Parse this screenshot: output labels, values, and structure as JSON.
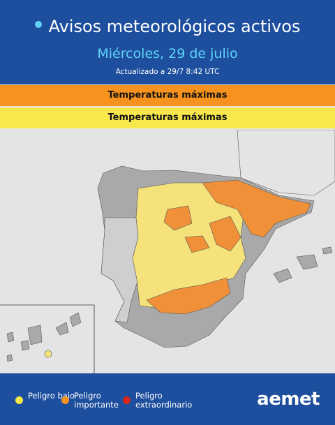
{
  "header": {
    "title": "Avisos meteorológicos activos",
    "date": "Miércoles, 29 de julio",
    "updated": "Actualizado a 29/7  8:42 UTC"
  },
  "bands": [
    {
      "label": "Temperaturas máximas",
      "color": "#f7921e"
    },
    {
      "label": "Temperaturas máximas",
      "color": "#f9e84b"
    }
  ],
  "legend": [
    {
      "label": "Peligro bajo",
      "color": "#f9e84b"
    },
    {
      "label": "Peligro importante",
      "color": "#f7921e"
    },
    {
      "label": "Peligro extraordinario",
      "color": "#d8261c"
    }
  ],
  "logo": "aemet"
}
